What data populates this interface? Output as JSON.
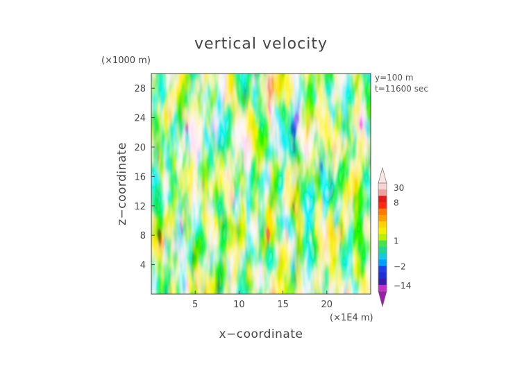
{
  "chart_data": {
    "type": "heatmap",
    "title": "vertical velocity",
    "xlabel": "x−coordinate",
    "ylabel": "z−coordinate",
    "x_unit": "(×1E4 m)",
    "y_unit": "(×1000 m)",
    "annotations": [
      "y=100 m",
      "t=11600 sec"
    ],
    "xlim": [
      0,
      25
    ],
    "ylim": [
      0,
      30
    ],
    "x_ticks": [
      5,
      10,
      15,
      20
    ],
    "y_ticks": [
      4,
      8,
      12,
      16,
      20,
      24,
      28
    ],
    "colorbar": {
      "labels": [
        "30",
        "8",
        "1",
        "−2",
        "−14"
      ],
      "levels": [
        -20,
        -14,
        -8,
        -5,
        -2,
        -1,
        0,
        0.5,
        1,
        2,
        3,
        4,
        5,
        6,
        8,
        12,
        20,
        30
      ],
      "colors": [
        "#9b1faa",
        "#c830c8",
        "#3a1db0",
        "#2030d8",
        "#1f3fe8",
        "#00a0ff",
        "#16c8e0",
        "#20d890",
        "#46e34a",
        "#b8f000",
        "#f0f000",
        "#ffd200",
        "#ffa000",
        "#ff7a00",
        "#ff2a10",
        "#e21a1a",
        "#f0a0a0",
        "#fad2d2",
        "#fbe6e6"
      ]
    },
    "grid": false
  }
}
